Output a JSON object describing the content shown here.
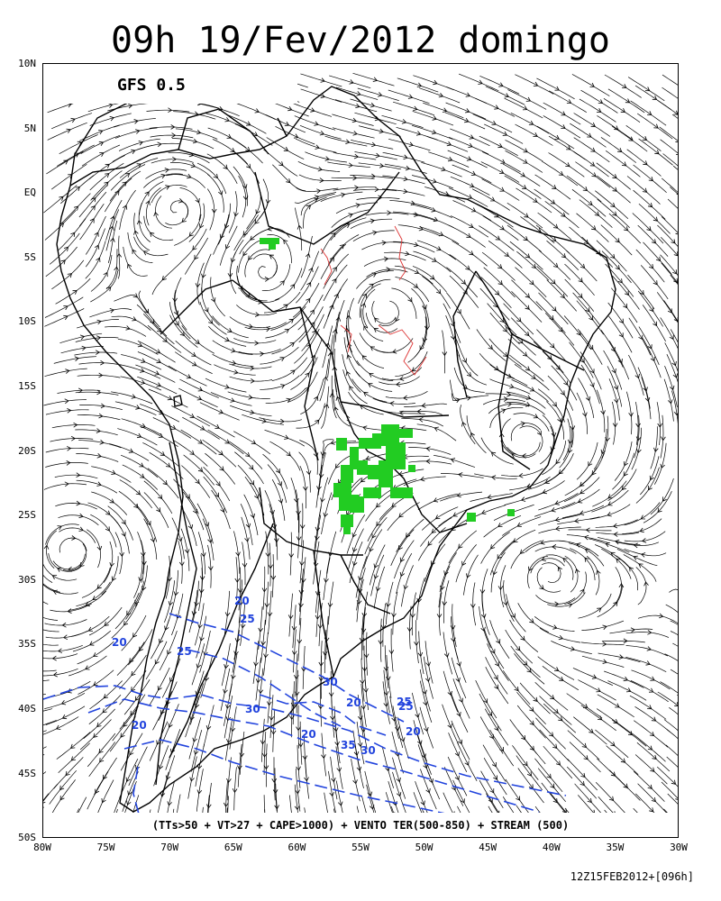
{
  "header": {
    "title": "09h 19/Fev/2012 domingo"
  },
  "map": {
    "model_label": "GFS 0.5",
    "legend": "(TTs>50 + VT>27 + CAPE>1000) + VENTO TER(500-850) + STREAM (500)",
    "run_info": "12Z15FEB2012+[096h]",
    "lat_labels": [
      "10N",
      "5N",
      "EQ",
      "5S",
      "10S",
      "15S",
      "20S",
      "25S",
      "30S",
      "35S",
      "40S",
      "45S",
      "50S"
    ],
    "lon_labels": [
      "80W",
      "75W",
      "70W",
      "65W",
      "60W",
      "55W",
      "50W",
      "45W",
      "40W",
      "35W",
      "30W"
    ],
    "contour_labels": [
      {
        "text": "20"
      },
      {
        "text": "25"
      },
      {
        "text": "20"
      },
      {
        "text": "25"
      },
      {
        "text": "30"
      },
      {
        "text": "20"
      },
      {
        "text": "25"
      },
      {
        "text": "30"
      },
      {
        "text": "25"
      },
      {
        "text": "20"
      },
      {
        "text": "20"
      },
      {
        "text": "35"
      },
      {
        "text": "30"
      },
      {
        "text": "20"
      }
    ],
    "colors": {
      "streamline": "#000000",
      "instability_fill": "#22cc22",
      "wind_contour": "#2244dd",
      "red_contour": "#dd3333",
      "country_border": "#000000"
    }
  }
}
